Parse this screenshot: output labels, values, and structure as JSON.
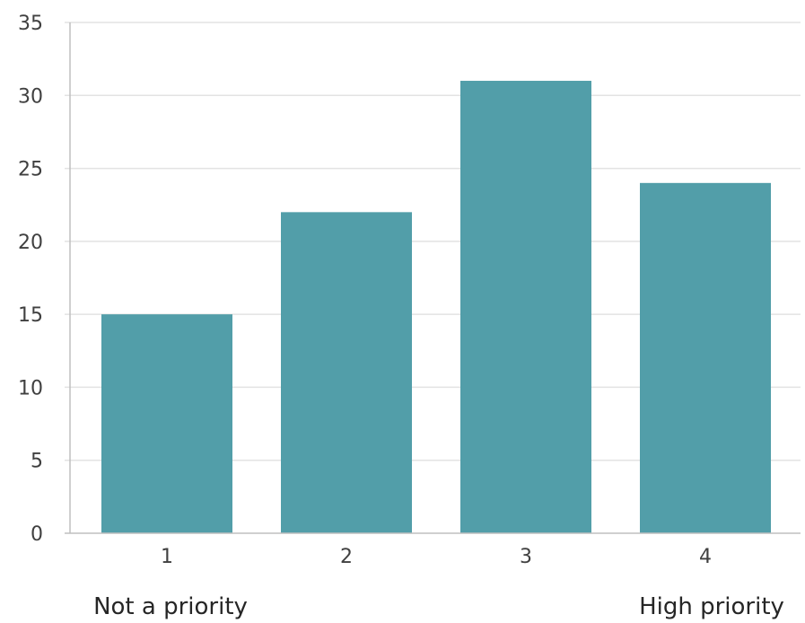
{
  "chart_data": {
    "type": "bar",
    "categories": [
      "1",
      "2",
      "3",
      "4"
    ],
    "values": [
      15,
      22,
      31,
      24
    ],
    "ylim": [
      0,
      35
    ],
    "yticks": [
      0,
      5,
      10,
      15,
      20,
      25,
      30,
      35
    ],
    "grid": true,
    "bar_color": "#529ea9",
    "grid_color": "#e3e3e3",
    "axis_color": "#bfbfbf",
    "scale_labels": {
      "low": "Not a priority",
      "high": "High priority"
    }
  }
}
